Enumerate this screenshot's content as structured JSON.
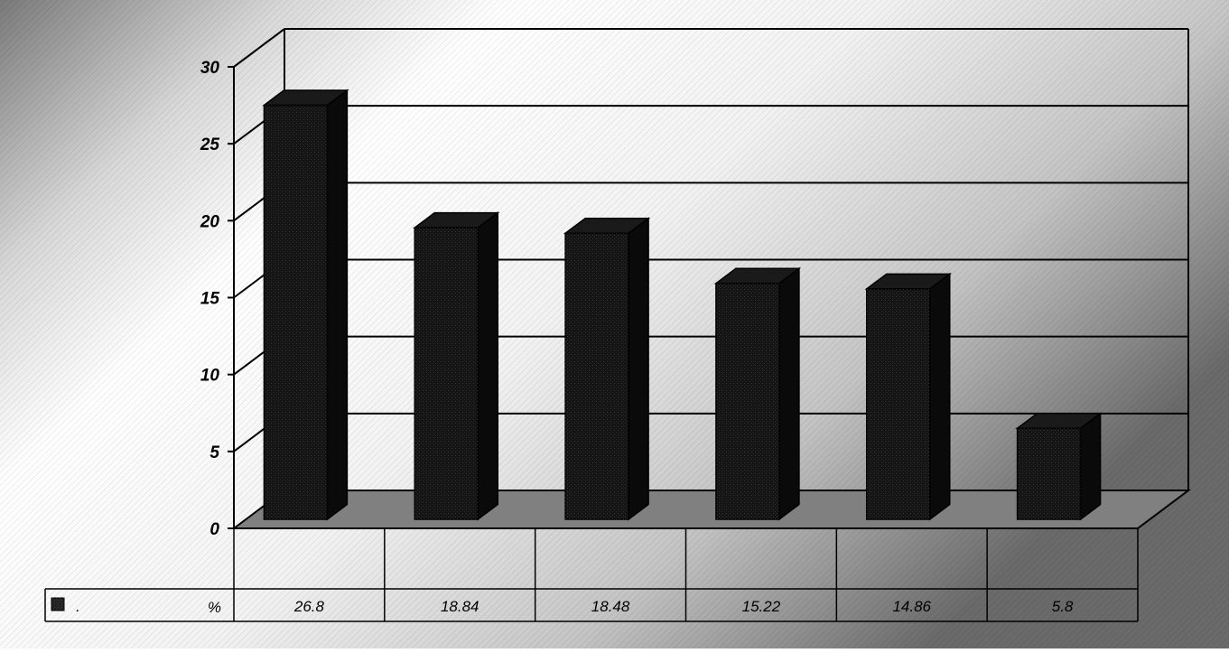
{
  "chart_data": {
    "type": "bar",
    "style": "3d",
    "categories": [
      "",
      "",
      "",
      "",
      "",
      ""
    ],
    "series": [
      {
        "legend_label": ".",
        "unit_label": "%",
        "values": [
          26.8,
          18.84,
          18.48,
          15.22,
          14.86,
          5.8
        ]
      }
    ],
    "ylim": [
      0,
      30
    ],
    "yticks": [
      0,
      5,
      10,
      15,
      20,
      25,
      30
    ],
    "ytick_labels": [
      "0",
      "5",
      "10",
      "15",
      "20",
      "25",
      "30"
    ],
    "data_table": [
      "26.8",
      "18.84",
      "18.48",
      "15.22",
      "14.86",
      "5.8"
    ],
    "grid": true,
    "legend": "data-table-left",
    "colors": {
      "bar_front": "#141414",
      "bar_side": "#0a0a0a",
      "bar_top": "#1a1a1a",
      "floor": "#808080",
      "background_light": "#ffffff",
      "background_dark": "#6e6e6e"
    }
  }
}
